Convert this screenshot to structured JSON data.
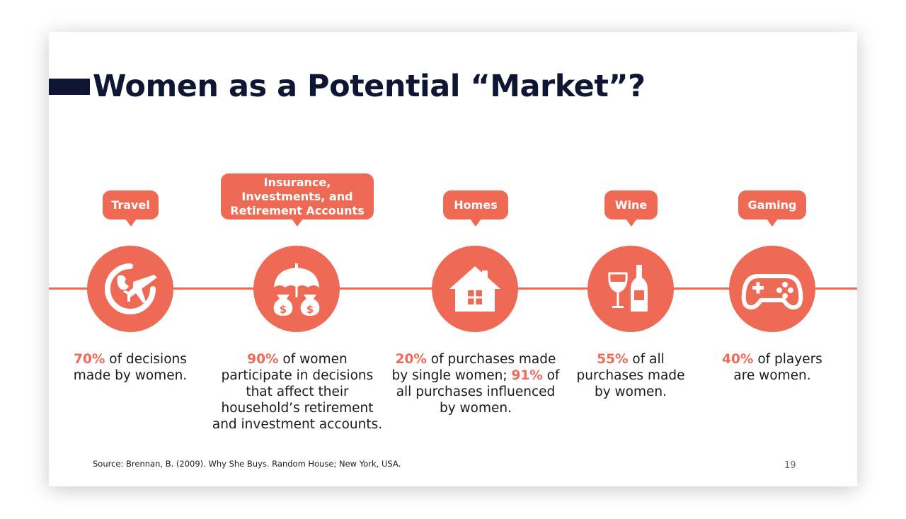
{
  "slide": {
    "title": "Women as a Potential “Market”?",
    "source": "Source: Brennan, B. (2009). Why She Buys. Random House; New York, USA.",
    "page_number": "19"
  },
  "accent_color": "#ee6a55",
  "title_color": "#0e1633",
  "categories": [
    {
      "label": "Travel",
      "icon": "globe-plane-icon",
      "pct1": "70%",
      "text1": " of decisions made by women.",
      "pct2": "",
      "text2": ""
    },
    {
      "label": "Insurance,\nInvestments, and\nRetirement Accounts",
      "icon": "umbrella-money-bags-icon",
      "pct1": "90%",
      "text1": " of women participate in decisions that affect their household’s retirement and investment accounts.",
      "pct2": "",
      "text2": ""
    },
    {
      "label": "Homes",
      "icon": "house-icon",
      "pct1": "20%",
      "text1": " of purchases made by single women;",
      "pct2": "91%",
      "text2": " of all purchases influenced by women."
    },
    {
      "label": "Wine",
      "icon": "wine-glass-bottle-icon",
      "pct1": "55%",
      "text1": " of all purchases made by women.",
      "pct2": "",
      "text2": ""
    },
    {
      "label": "Gaming",
      "icon": "gamepad-icon",
      "pct1": "40%",
      "text1": " of players are women.",
      "pct2": "",
      "text2": ""
    }
  ]
}
